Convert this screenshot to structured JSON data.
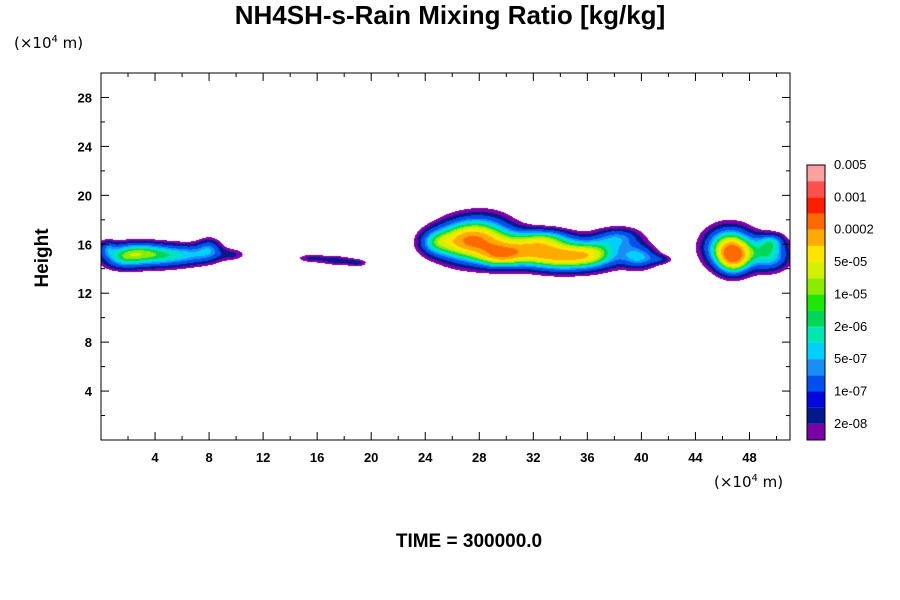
{
  "chart_data": {
    "type": "heatmap",
    "title": "NH4SH-s-Rain Mixing Ratio [kg/kg]",
    "ylabel": "Height",
    "x_unit": {
      "prefix": "(×10",
      "exp": "4",
      "suffix": " m)"
    },
    "y_unit": {
      "prefix": "(×10",
      "exp": "4",
      "suffix": " m)"
    },
    "xlim": [
      0,
      51
    ],
    "ylim": [
      0,
      30
    ],
    "x_ticks": [
      "4",
      "8",
      "12",
      "16",
      "20",
      "24",
      "28",
      "32",
      "36",
      "40",
      "44",
      "48"
    ],
    "y_ticks": [
      "4",
      "8",
      "12",
      "16",
      "20",
      "24",
      "28"
    ],
    "colorbar": {
      "colors": [
        "#7a00a8",
        "#001a8c",
        "#0008dc",
        "#0050f0",
        "#1a8ef5",
        "#00cfff",
        "#00e6b4",
        "#00d65a",
        "#1ee600",
        "#8ceb00",
        "#d2f000",
        "#ffe600",
        "#ffaa00",
        "#ff6a00",
        "#ff1e00",
        "#ff5050",
        "#ffa0a0"
      ],
      "labels": [
        "2e-08",
        "1e-07",
        "5e-07",
        "2e-06",
        "1e-05",
        "5e-05",
        "0.0002",
        "0.001",
        "0.005"
      ]
    },
    "cloud_regions": [
      {
        "x": [
          0,
          11
        ],
        "y": [
          13.8,
          16.8
        ],
        "peak_level": 6
      },
      {
        "x": [
          14,
          19.5
        ],
        "y": [
          14.2,
          15.4
        ],
        "peak_level": 3
      },
      {
        "x": [
          23,
          43
        ],
        "y": [
          13.5,
          18.9
        ],
        "peak_level": 11
      },
      {
        "x": [
          43.5,
          51
        ],
        "y": [
          13.2,
          17.6
        ],
        "peak_level": 13
      }
    ],
    "footer": "TIME = 300000.0"
  }
}
